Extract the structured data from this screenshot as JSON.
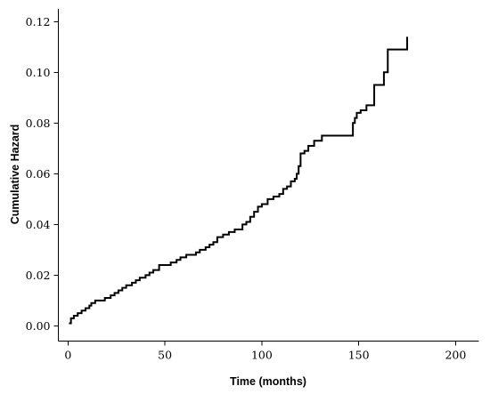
{
  "chart_data": {
    "type": "line",
    "title": "",
    "xlabel": "Time (months)",
    "ylabel": "Cumulative Hazard",
    "xlim": [
      -5,
      212
    ],
    "ylim": [
      -0.006,
      0.125
    ],
    "xticks": [
      0,
      50,
      100,
      150,
      200
    ],
    "xtick_labels": [
      "0",
      "50",
      "100",
      "150",
      "200"
    ],
    "yticks": [
      0.0,
      0.02,
      0.04,
      0.06,
      0.08,
      0.1,
      0.12
    ],
    "ytick_labels": [
      "0.00",
      "0.02",
      "0.04",
      "0.06",
      "0.08",
      "0.10",
      "0.12"
    ],
    "grid": false,
    "legend": "none",
    "line_color": "#000000",
    "step": true,
    "series": [
      {
        "x": [
          0.5,
          1.5,
          3,
          5,
          7,
          9,
          11,
          12,
          14,
          16,
          19,
          22,
          24,
          26,
          28,
          30,
          33,
          35,
          37,
          40,
          42,
          44,
          47,
          50,
          53,
          56,
          58,
          61,
          63,
          66,
          68,
          71,
          73,
          75,
          77,
          80,
          83,
          86,
          90,
          92,
          94,
          96,
          98,
          100,
          103,
          106,
          109,
          111,
          113,
          115,
          117,
          118,
          119,
          120,
          122,
          124,
          127,
          131,
          147,
          148,
          149,
          151,
          154,
          158,
          163,
          165,
          175
        ],
        "y": [
          0.001,
          0.003,
          0.004,
          0.005,
          0.006,
          0.007,
          0.008,
          0.009,
          0.01,
          0.01,
          0.011,
          0.012,
          0.013,
          0.014,
          0.015,
          0.016,
          0.017,
          0.018,
          0.019,
          0.02,
          0.021,
          0.022,
          0.024,
          0.024,
          0.025,
          0.026,
          0.027,
          0.028,
          0.028,
          0.029,
          0.03,
          0.031,
          0.032,
          0.033,
          0.035,
          0.036,
          0.037,
          0.038,
          0.04,
          0.041,
          0.043,
          0.045,
          0.047,
          0.048,
          0.05,
          0.051,
          0.052,
          0.054,
          0.055,
          0.057,
          0.058,
          0.06,
          0.063,
          0.068,
          0.069,
          0.071,
          0.073,
          0.075,
          0.08,
          0.082,
          0.084,
          0.085,
          0.087,
          0.095,
          0.1,
          0.109,
          0.114
        ]
      }
    ]
  }
}
